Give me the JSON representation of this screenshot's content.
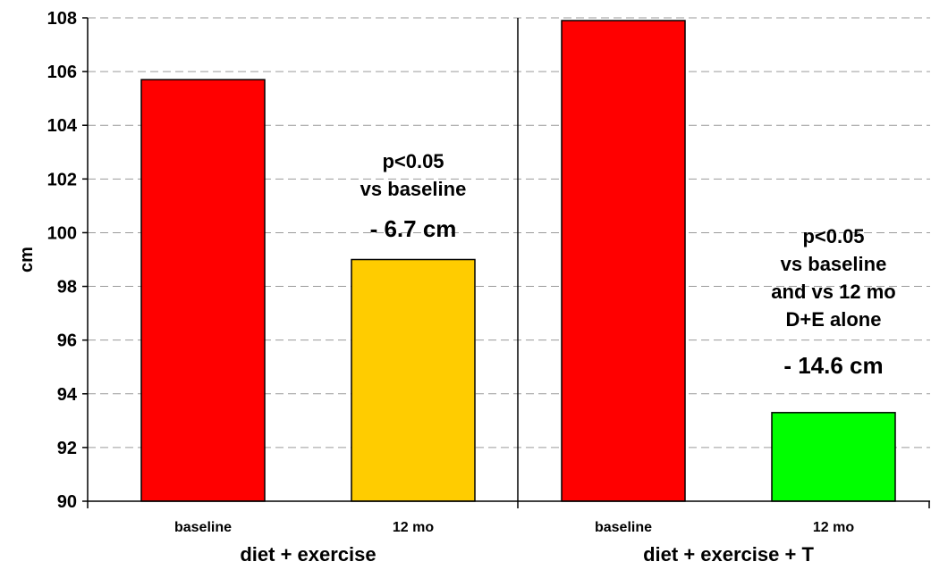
{
  "chart_data": {
    "type": "bar",
    "title": "",
    "ylabel": "cm",
    "ylim": [
      90,
      108
    ],
    "yticks": [
      90,
      92,
      94,
      96,
      98,
      100,
      102,
      104,
      106,
      108
    ],
    "grid": true,
    "legend": "none",
    "categories": [
      "baseline",
      "12 mo",
      "baseline",
      "12 mo"
    ],
    "values": [
      105.7,
      99.0,
      107.9,
      93.3
    ],
    "bar_colors": [
      "#ff0000",
      "#ffcc00",
      "#ff0000",
      "#00ff00"
    ],
    "groups": [
      {
        "label": "diet + exercise",
        "bar_indices": [
          0,
          1
        ]
      },
      {
        "label": "diet + exercise + T",
        "bar_indices": [
          2,
          3
        ]
      }
    ],
    "annotations": [
      {
        "bar_index": 1,
        "lines": [
          "p<0.05",
          "vs baseline"
        ],
        "change": "- 6.7 cm"
      },
      {
        "bar_index": 3,
        "lines": [
          "p<0.05",
          "vs baseline",
          "and vs 12 mo",
          "D+E alone"
        ],
        "change": "- 14.6 cm"
      }
    ]
  }
}
